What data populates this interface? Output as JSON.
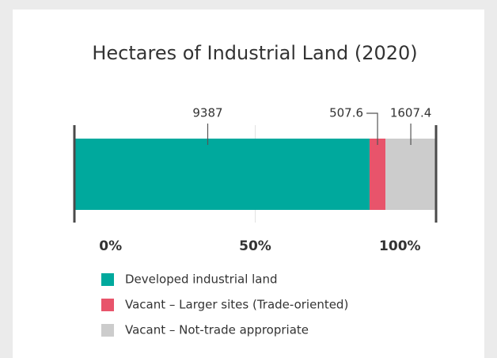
{
  "chart_data": {
    "type": "stacked-bar-horizontal",
    "title": "Hectares of Industrial Land (2020)",
    "series": [
      {
        "name": "Developed industrial land",
        "color": "#00a99d",
        "values": [
          9387
        ]
      },
      {
        "name": "Vacant – Larger sites (Trade-oriented)",
        "color": "#e8546b",
        "values": [
          507.6
        ]
      },
      {
        "name": "Vacant – Not-trade appropriate",
        "color": "#cccccc",
        "values": [
          1607.4
        ]
      }
    ],
    "xlim": [
      0,
      11502
    ],
    "xticks": [
      {
        "value": 0,
        "label": "0%"
      },
      {
        "value": 5751,
        "label": "50%"
      },
      {
        "value": 11502,
        "label": "100%"
      }
    ],
    "grid": true
  }
}
